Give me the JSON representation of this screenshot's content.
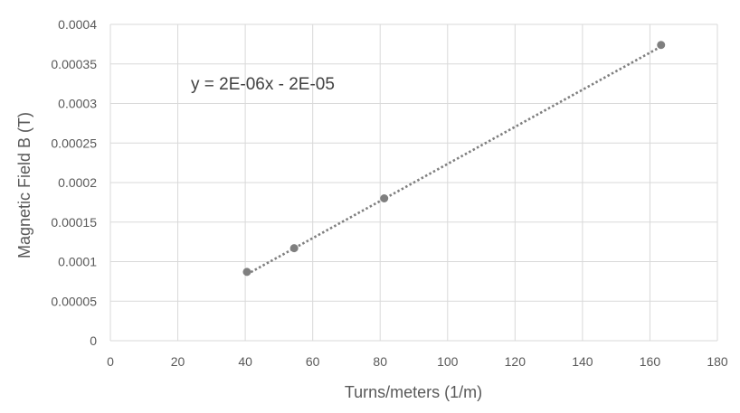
{
  "chart_data": {
    "type": "scatter",
    "title": "",
    "xlabel": "Turns/meters (1/m)",
    "ylabel": "Magnetic Field B (T)",
    "xlim": [
      0,
      180
    ],
    "ylim": [
      0,
      0.0004
    ],
    "x_ticks": [
      "0",
      "20",
      "40",
      "60",
      "80",
      "100",
      "120",
      "140",
      "160",
      "180"
    ],
    "y_ticks": [
      "0",
      "0.00005",
      "0.0001",
      "0.00015",
      "0.0002",
      "0.00025",
      "0.0003",
      "0.00035",
      "0.0004"
    ],
    "grid": true,
    "points": [
      {
        "x": 40.5,
        "y": 8.7e-05
      },
      {
        "x": 54.5,
        "y": 0.000117
      },
      {
        "x": 81.2,
        "y": 0.00018
      },
      {
        "x": 163.3,
        "y": 0.000374
      }
    ],
    "trendline": {
      "style": "dotted",
      "equation": "y = 2E-06x - 2E-05",
      "x_start": 40.5,
      "y_start": 8.4e-05,
      "x_end": 163.3,
      "y_end": 0.000372
    },
    "colors": {
      "marker": "#7f7f7f",
      "trendline": "#7f7f7f",
      "grid": "#d9d9d9",
      "text": "#595959"
    }
  }
}
